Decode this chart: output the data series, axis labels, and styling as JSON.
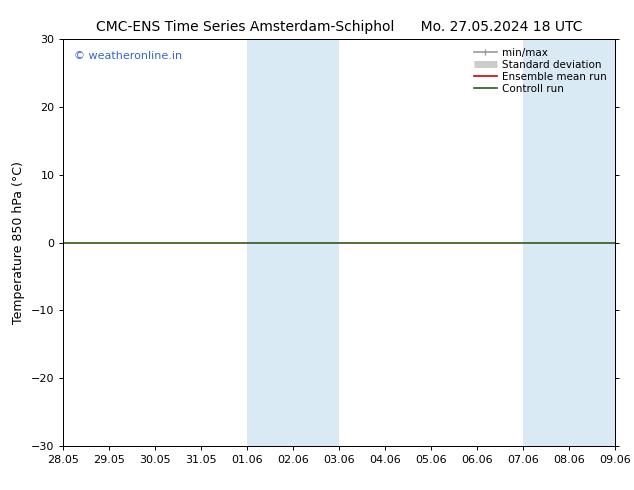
{
  "title_left": "CMC-ENS Time Series Amsterdam-Schiphol",
  "title_right": "Mo. 27.05.2024 18 UTC",
  "ylabel": "Temperature 850 hPa (°C)",
  "watermark": "© weatheronline.in",
  "ylim": [
    -30,
    30
  ],
  "yticks": [
    -30,
    -20,
    -10,
    0,
    10,
    20,
    30
  ],
  "xtick_labels": [
    "28.05",
    "29.05",
    "30.05",
    "31.05",
    "01.06",
    "02.06",
    "03.06",
    "04.06",
    "05.06",
    "06.06",
    "07.06",
    "08.06",
    "09.06"
  ],
  "shaded_regions": [
    {
      "xmin": 4,
      "xmax": 6,
      "color": "#daeaf5"
    },
    {
      "xmin": 10,
      "xmax": 12,
      "color": "#daeaf5"
    }
  ],
  "zero_line_y": 0,
  "zero_line_color": "#2d5a1b",
  "legend_items": [
    {
      "label": "min/max",
      "color": "#999999",
      "lw": 1.2
    },
    {
      "label": "Standard deviation",
      "color": "#cccccc",
      "lw": 5
    },
    {
      "label": "Ensemble mean run",
      "color": "#cc0000",
      "lw": 1.2
    },
    {
      "label": "Controll run",
      "color": "#2d5a1b",
      "lw": 1.2
    }
  ],
  "bg_color": "#ffffff",
  "watermark_color": "#3366cc",
  "title_fontsize": 10,
  "axis_label_fontsize": 9,
  "tick_fontsize": 8,
  "legend_fontsize": 7.5
}
